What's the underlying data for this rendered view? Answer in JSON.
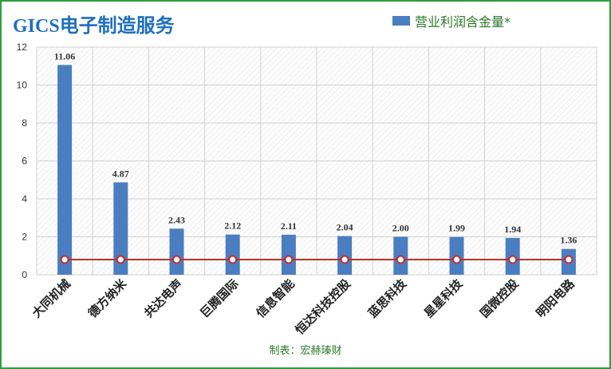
{
  "title": "GICS电子制造服务",
  "source": "制表：宏赫瑧财",
  "colors": {
    "bar": "#4a7ec0",
    "line": "#c0302a",
    "border": "#2e9e3e",
    "title": "#1f6fbf",
    "text_green": "#2a7a2a"
  },
  "chart_data": {
    "type": "bar",
    "categories": [
      "大同机械",
      "德方纳米",
      "共达电声",
      "巨腾国际",
      "信息智能",
      "恒达科技控股",
      "蓝思科技",
      "星星科技",
      "国微控股",
      "明阳电路"
    ],
    "series": [
      {
        "name": "营业利润含金量*",
        "values": [
          11.06,
          4.87,
          2.43,
          2.12,
          2.11,
          2.04,
          2.0,
          1.99,
          1.94,
          1.36
        ]
      }
    ],
    "value_labels": [
      "11.06",
      "4.87",
      "2.43",
      "2.12",
      "2.11",
      "2.04",
      "2.00",
      "1.99",
      "1.94",
      "1.36"
    ],
    "reference_line": {
      "value": 0.8
    },
    "y_ticks": [
      "0",
      "2",
      "4",
      "6",
      "8",
      "10",
      "12"
    ],
    "ylim": [
      0,
      12
    ],
    "grid": true,
    "legend_position": "top-right"
  }
}
